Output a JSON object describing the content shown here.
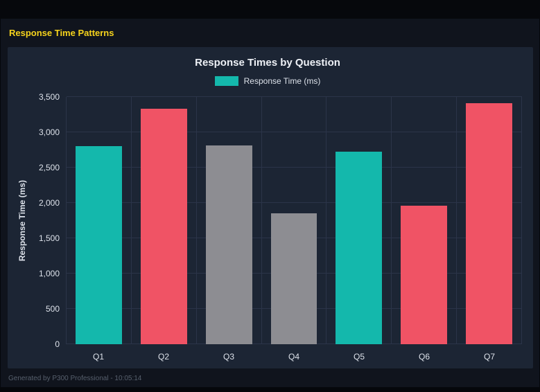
{
  "page": {
    "title": "Response Time Patterns",
    "footer": "Generated by P300 Professional - 10:05:14"
  },
  "colors": {
    "page_bg": "#10141d",
    "panel_bg": "#1c2534",
    "grid": "#2b3449",
    "title_text": "#eef1f6",
    "tick_text": "#dde2ea",
    "footer_text": "#57606d",
    "accent_yellow": "#f6d31c",
    "teal": "#14b8ac",
    "red": "#f05365",
    "gray": "#8d8d92"
  },
  "chart_data": {
    "type": "bar",
    "title": "Response Times by Question",
    "legend": [
      {
        "label": "Response Time (ms)",
        "color": "#14b8ac"
      }
    ],
    "legend_position": "top",
    "categories": [
      "Q1",
      "Q2",
      "Q3",
      "Q4",
      "Q5",
      "Q6",
      "Q7"
    ],
    "values": [
      2800,
      3330,
      2810,
      1850,
      2730,
      1960,
      3410
    ],
    "bar_colors": [
      "#14b8ac",
      "#f05365",
      "#8d8d92",
      "#8d8d92",
      "#14b8ac",
      "#f05365",
      "#f05365"
    ],
    "xlabel": "",
    "ylabel": "Response Time (ms)",
    "ylim": [
      0,
      3500
    ],
    "yticks": [
      0,
      500,
      1000,
      1500,
      2000,
      2500,
      3000,
      3500
    ],
    "grid": true
  }
}
